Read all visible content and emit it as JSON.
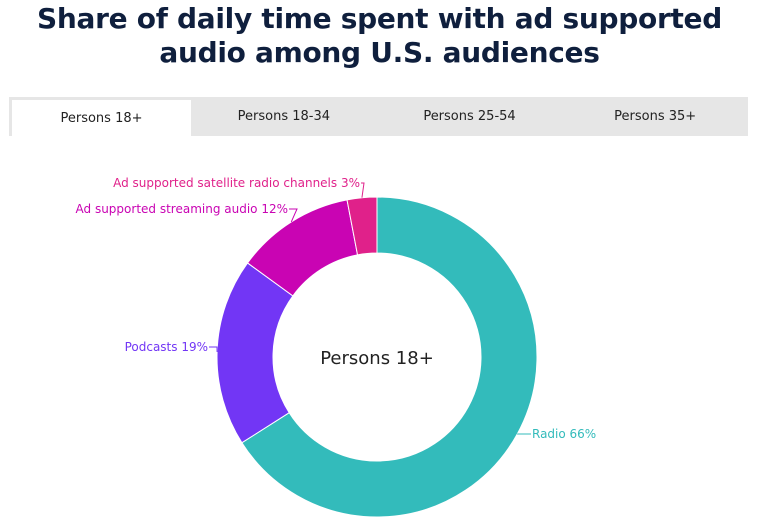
{
  "title_line1": "Share of daily time spent with ad supported",
  "title_line2": "audio among U.S. audiences",
  "tabs": [
    {
      "label": "Persons 18+",
      "active": true
    },
    {
      "label": "Persons 18-34",
      "active": false
    },
    {
      "label": "Persons 25-54",
      "active": false
    },
    {
      "label": "Persons 35+",
      "active": false
    }
  ],
  "chart_data": {
    "type": "pie",
    "center_label": "Persons 18+",
    "slices": [
      {
        "label": "Radio 66%",
        "value": 66,
        "color": "#33bbbb"
      },
      {
        "label": "Podcasts 19%",
        "value": 19,
        "color": "#7236f5"
      },
      {
        "label": "Ad supported streaming audio 12%",
        "value": 12,
        "color": "#c904b3"
      },
      {
        "label": "Ad supported satellite radio channels 3%",
        "value": 3,
        "color": "#e0218a"
      }
    ]
  }
}
